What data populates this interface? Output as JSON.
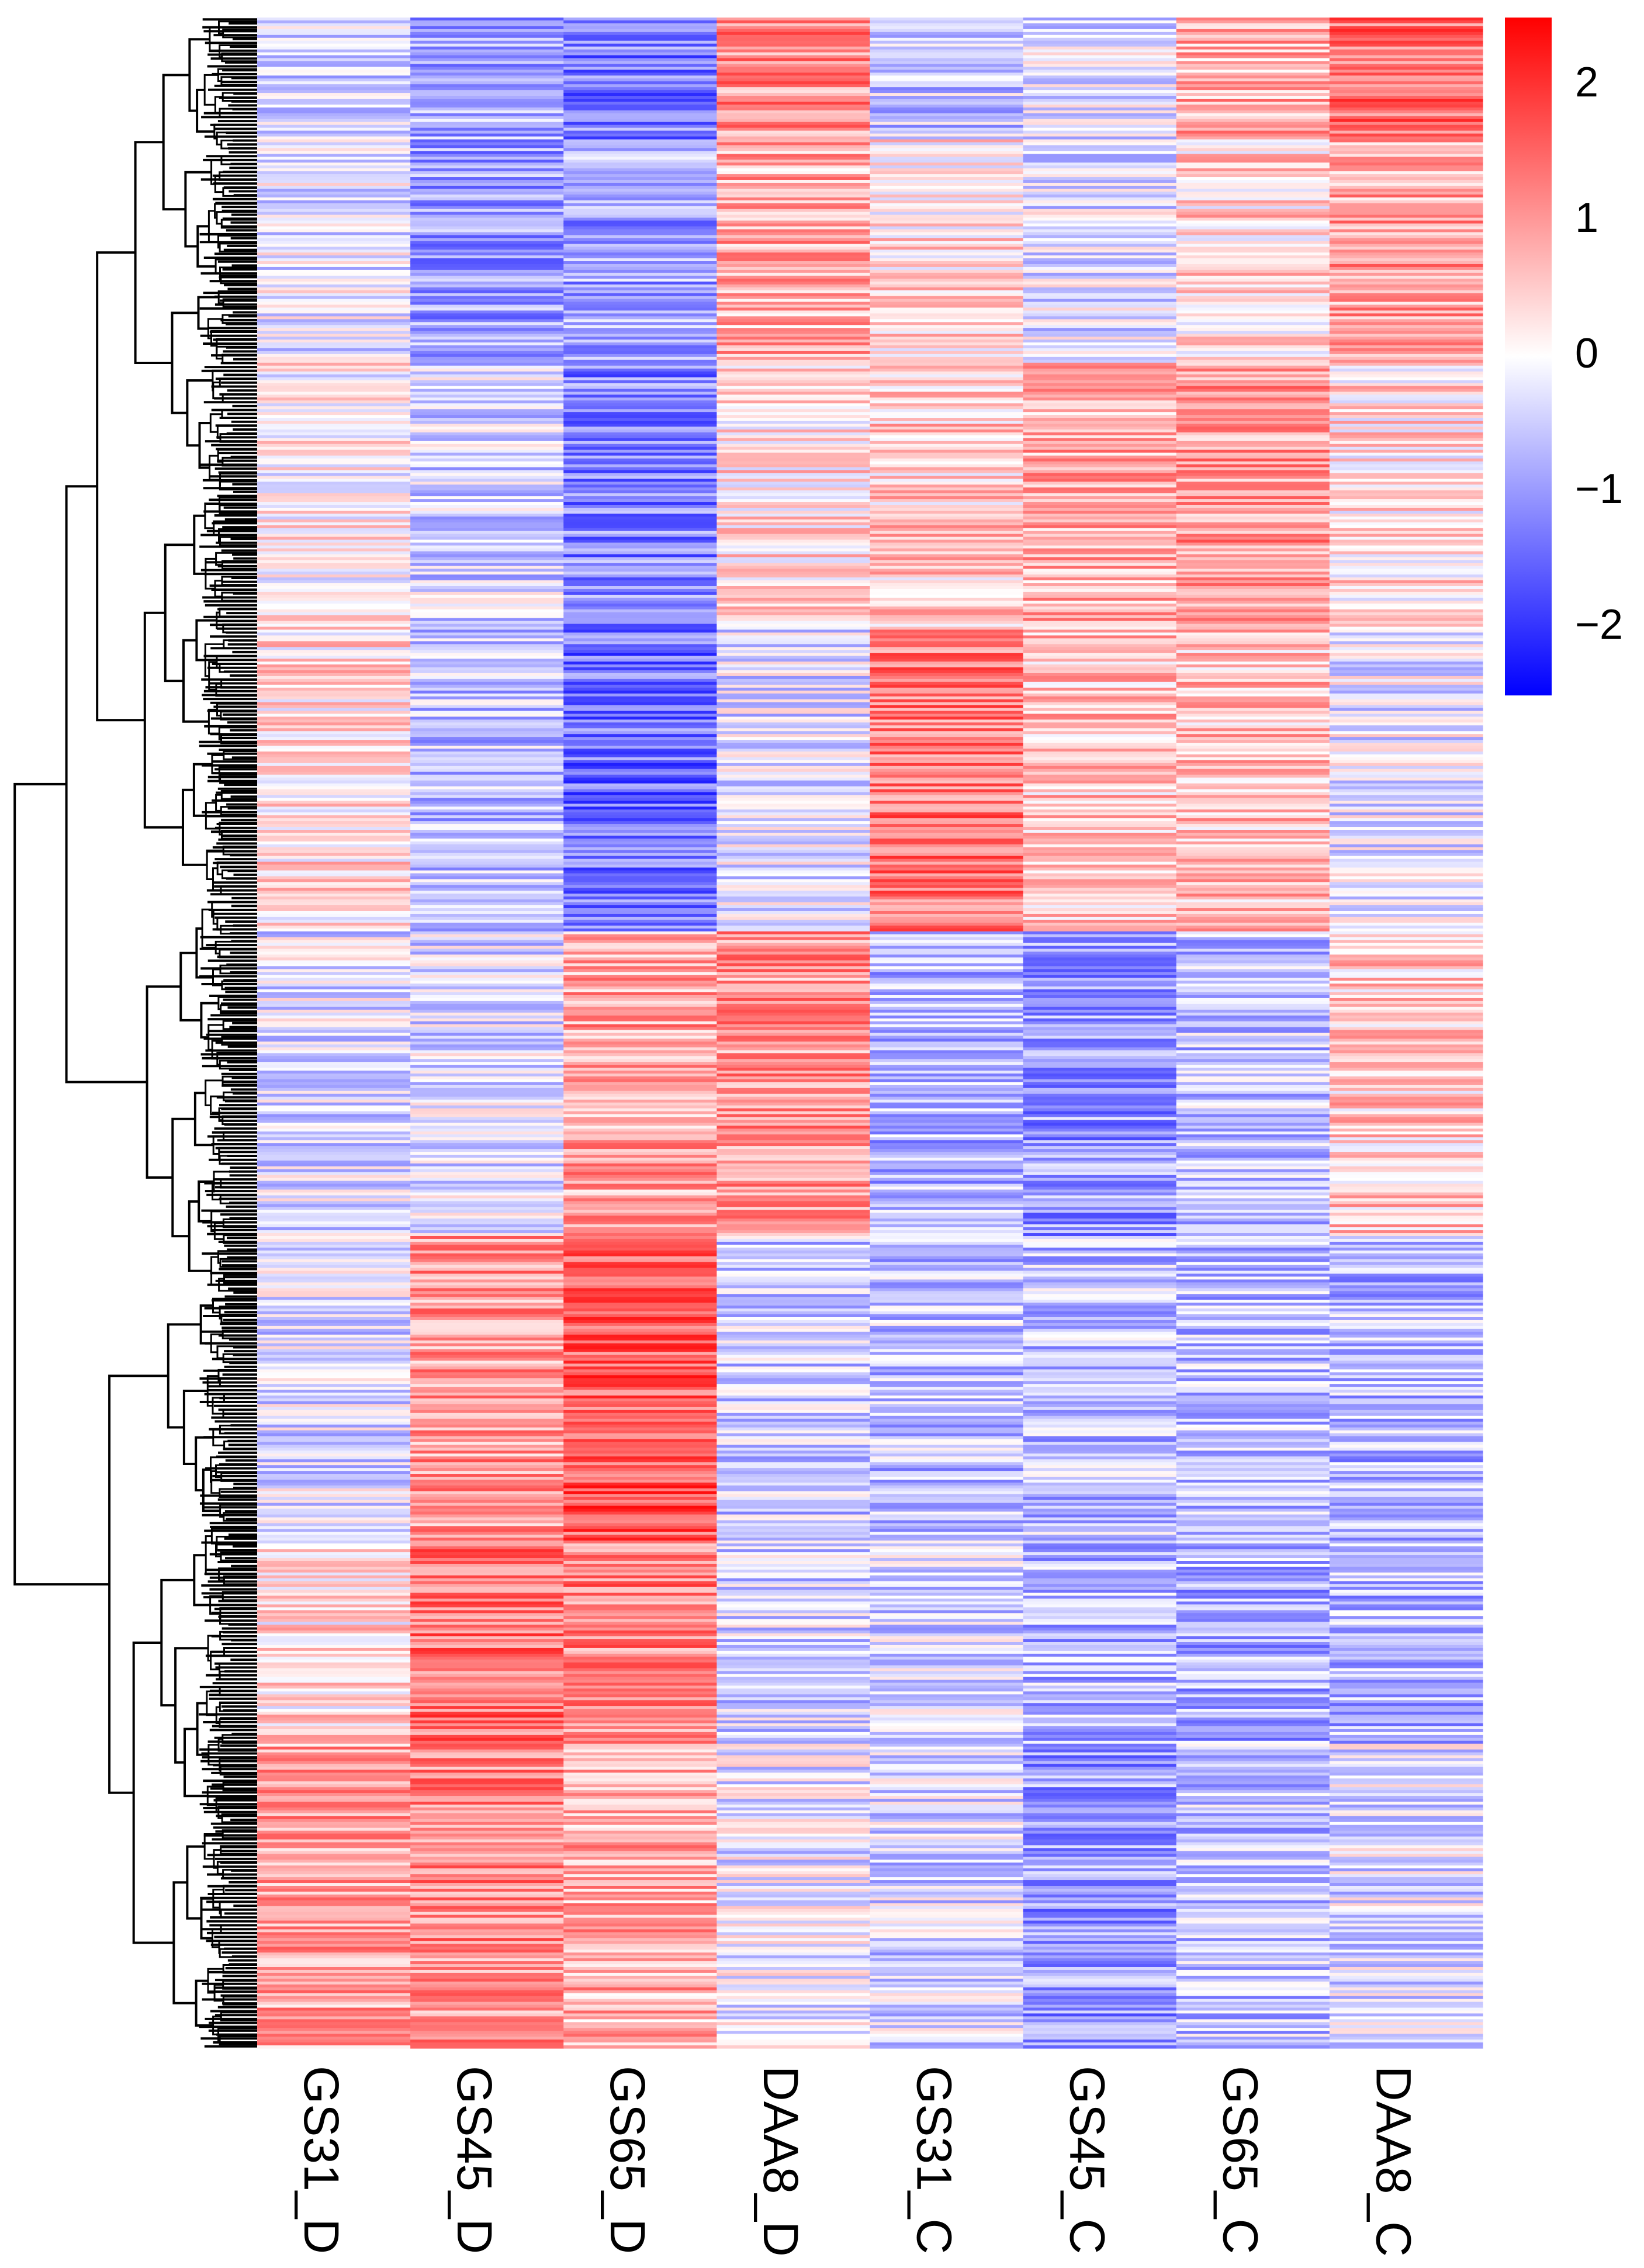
{
  "chart_data": {
    "type": "heatmap",
    "title": "",
    "xlabel": "",
    "ylabel": "",
    "columns": [
      "GS31_D",
      "GS45_D",
      "GS65_D",
      "DAA8_D",
      "GS31_C",
      "GS45_C",
      "GS65_C",
      "DAA8_C"
    ],
    "row_dendrogram": true,
    "colorbar": {
      "ticks": [
        2,
        1,
        0,
        -1,
        -2
      ],
      "tick_labels": [
        "2",
        "1",
        "0",
        "−1",
        "−2"
      ],
      "range": [
        -2.5,
        2.5
      ],
      "colors": {
        "low": "#0000ff",
        "mid": "#ffffff",
        "high": "#ff0000"
      }
    },
    "row_blocks": {
      "description": "approximate mean z-score per row cluster (top to bottom, fraction of rows)",
      "boundaries": [
        0,
        0.06,
        0.17,
        0.3,
        0.45,
        0.6,
        0.75,
        0.85,
        1.0
      ],
      "values": [
        [
          -0.5,
          -0.8,
          -1.3,
          1.1,
          -0.5,
          -0.3,
          0.8,
          1.4
        ],
        [
          -0.2,
          -0.9,
          -0.9,
          0.8,
          0.3,
          -0.3,
          0.4,
          0.9
        ],
        [
          0.1,
          -0.4,
          -1.2,
          0.3,
          0.5,
          0.8,
          1.0,
          0.3
        ],
        [
          0.3,
          -0.6,
          -1.4,
          -0.3,
          1.3,
          0.6,
          0.6,
          -0.2
        ],
        [
          -0.3,
          -0.3,
          0.9,
          1.0,
          -0.7,
          -1.0,
          -0.6,
          0.5
        ],
        [
          -0.3,
          1.0,
          1.6,
          -0.5,
          -0.6,
          -0.6,
          -0.6,
          -0.7
        ],
        [
          0.3,
          1.4,
          1.2,
          -0.4,
          -0.4,
          -0.7,
          -0.8,
          -0.7
        ],
        [
          0.9,
          1.1,
          0.8,
          -0.2,
          -0.4,
          -1.0,
          -0.6,
          -0.3
        ]
      ]
    }
  }
}
